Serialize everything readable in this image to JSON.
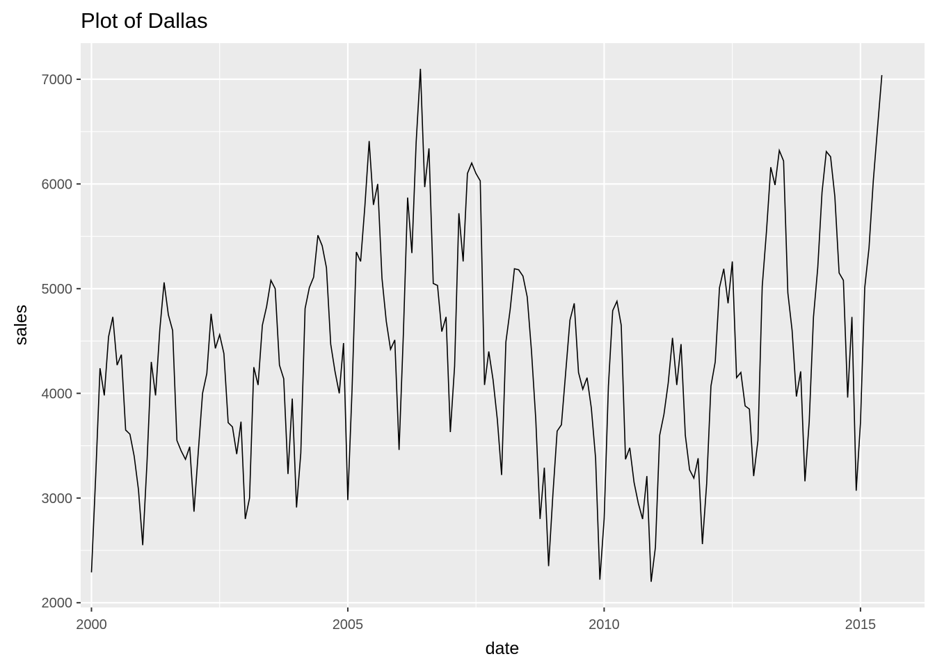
{
  "chart_data": {
    "type": "line",
    "title": "Plot of Dallas",
    "xlabel": "date",
    "ylabel": "sales",
    "xlim": [
      1999.79,
      2016.25
    ],
    "ylim": [
      1955,
      7345
    ],
    "x_ticks": [
      2000,
      2005,
      2010,
      2015
    ],
    "y_ticks": [
      2000,
      3000,
      4000,
      5000,
      6000,
      7000
    ],
    "x_tick_labels": [
      "2000",
      "2005",
      "2010",
      "2015"
    ],
    "y_tick_labels": [
      "2000",
      "3000",
      "4000",
      "5000",
      "6000",
      "7000"
    ],
    "grid": true,
    "panel_background": "#EBEBEB",
    "grid_color": "#FFFFFF",
    "line_color": "#000000",
    "series": [
      {
        "x_start": 2000.0,
        "x_step": 0.0833333,
        "values": [
          2290,
          3220,
          4240,
          3980,
          4540,
          4730,
          4270,
          4370,
          3650,
          3610,
          3400,
          3080,
          2550,
          3340,
          4300,
          3980,
          4610,
          5060,
          4750,
          4600,
          3550,
          3450,
          3370,
          3490,
          2870,
          3440,
          4000,
          4190,
          4760,
          4430,
          4560,
          4380,
          3720,
          3680,
          3420,
          3730,
          2800,
          3000,
          4250,
          4080,
          4650,
          4830,
          5080,
          5000,
          4270,
          4140,
          3230,
          3950,
          2910,
          3430,
          4810,
          5010,
          5110,
          5510,
          5410,
          5200,
          4470,
          4210,
          4000,
          4480,
          2980,
          4040,
          5350,
          5260,
          5790,
          6410,
          5800,
          6000,
          5100,
          4690,
          4420,
          4510,
          3460,
          4560,
          5870,
          5340,
          6400,
          7100,
          5970,
          6340,
          5050,
          5030,
          4590,
          4730,
          3630,
          4260,
          5720,
          5260,
          6100,
          6200,
          6100,
          6030,
          4080,
          4400,
          4130,
          3750,
          3220,
          4490,
          4800,
          5190,
          5180,
          5120,
          4920,
          4400,
          3750,
          2800,
          3290,
          2350,
          3030,
          3640,
          3700,
          4200,
          4700,
          4860,
          4200,
          4040,
          4150,
          3860,
          3380,
          2220,
          2800,
          4070,
          4790,
          4880,
          4650,
          3370,
          3480,
          3150,
          2950,
          2800,
          3210,
          2200,
          2530,
          3600,
          3800,
          4100,
          4530,
          4080,
          4470,
          3600,
          3270,
          3190,
          3380,
          2560,
          3140,
          4070,
          4300,
          5010,
          5190,
          4860,
          5260,
          4150,
          4200,
          3880,
          3850,
          3210,
          3550,
          5020,
          5550,
          6160,
          5990,
          6320,
          6220,
          4960,
          4600,
          3970,
          4210,
          3160,
          3730,
          4730,
          5200,
          5920,
          6310,
          6260,
          5880,
          5150,
          5080,
          3960,
          4730,
          3070,
          3720,
          5010,
          5390,
          6030,
          6540,
          7040
        ]
      }
    ]
  }
}
